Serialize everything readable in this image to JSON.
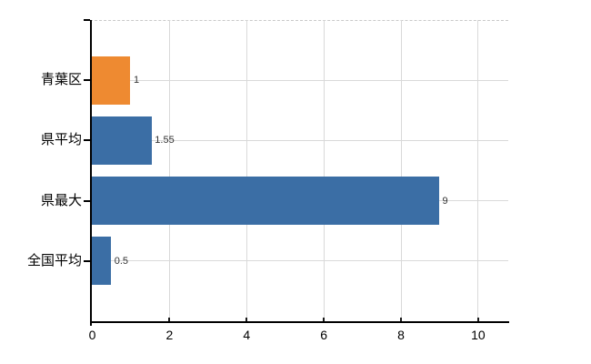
{
  "chart_data": {
    "type": "bar",
    "orientation": "horizontal",
    "title": "",
    "xlabel": "",
    "ylabel": "",
    "categories": [
      "青葉区",
      "県平均",
      "県最大",
      "全国平均"
    ],
    "values": [
      1,
      1.55,
      9,
      0.5
    ],
    "value_labels": [
      "1",
      "1.55",
      "9",
      "0.5"
    ],
    "bar_colors": [
      "#EE8A31",
      "#3B6EA5",
      "#3B6EA5",
      "#3B6EA5"
    ],
    "xlim": [
      0,
      10.78
    ],
    "xticks": [
      0,
      2,
      4,
      6,
      8,
      10
    ],
    "xtick_labels": [
      "0",
      "2",
      "4",
      "6",
      "8",
      "10"
    ],
    "grid": true,
    "legend": false,
    "colors": {
      "accent_orange": "#EE8A31",
      "accent_blue": "#3B6EA5",
      "gridline": "#d9d9d9",
      "axis": "#000000",
      "value_label": "#333333",
      "background": "#ffffff"
    }
  }
}
